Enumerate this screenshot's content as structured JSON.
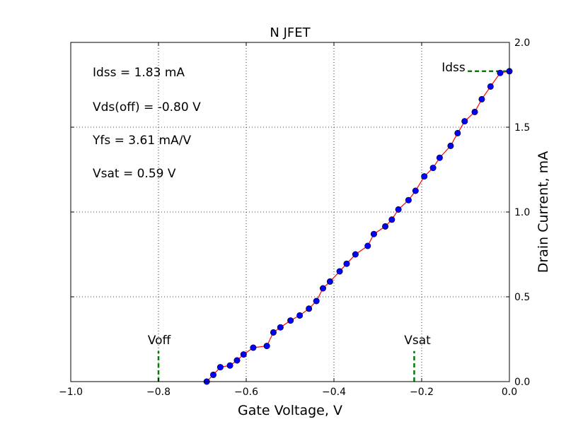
{
  "chart_data": {
    "type": "line",
    "title": "N JFET",
    "xlabel": "Gate Voltage, V",
    "ylabel": "Drain Current, mA",
    "xlim": [
      -1.0,
      0.0
    ],
    "ylim": [
      0.0,
      2.0
    ],
    "grid": true,
    "x_ticks": [
      -1.0,
      -0.8,
      -0.6,
      -0.4,
      -0.2,
      0.0
    ],
    "x_tick_labels": [
      "−1.0",
      "−0.8",
      "−0.6",
      "−0.4",
      "−0.2",
      "0.0"
    ],
    "y_ticks": [
      0.0,
      0.5,
      1.0,
      1.5,
      2.0
    ],
    "y_tick_labels": [
      "0.0",
      "0.5",
      "1.0",
      "1.5",
      "2.0"
    ],
    "y_axis_side": "right",
    "series": [
      {
        "line_color": "#ff0000",
        "marker_color": "#0000ff",
        "x": [
          -0.69,
          -0.675,
          -0.659,
          -0.637,
          -0.621,
          -0.606,
          -0.584,
          -0.553,
          -0.538,
          -0.522,
          -0.499,
          -0.478,
          -0.457,
          -0.44,
          -0.425,
          -0.409,
          -0.387,
          -0.371,
          -0.351,
          -0.323,
          -0.309,
          -0.283,
          -0.268,
          -0.253,
          -0.23,
          -0.214,
          -0.194,
          -0.174,
          -0.159,
          -0.134,
          -0.118,
          -0.102,
          -0.079,
          -0.063,
          -0.043,
          -0.021,
          0.0
        ],
        "y": [
          0.0,
          0.04,
          0.085,
          0.095,
          0.125,
          0.16,
          0.2,
          0.21,
          0.29,
          0.32,
          0.36,
          0.39,
          0.43,
          0.475,
          0.55,
          0.59,
          0.65,
          0.695,
          0.75,
          0.8,
          0.87,
          0.915,
          0.955,
          1.015,
          1.07,
          1.125,
          1.21,
          1.26,
          1.32,
          1.39,
          1.465,
          1.535,
          1.59,
          1.665,
          1.74,
          1.82,
          1.83
        ]
      }
    ],
    "annotations": [
      {
        "id": "stat-idss",
        "text": "Idss = 1.83 mA"
      },
      {
        "id": "stat-vds-off",
        "text": "Vds(off) = -0.80 V"
      },
      {
        "id": "stat-yfs",
        "text": "Yfs = 3.61 mA/V"
      },
      {
        "id": "stat-vsat",
        "text": "Vsat = 0.59 V"
      }
    ],
    "markers": [
      {
        "id": "voff",
        "label": "Voff",
        "orientation": "vertical",
        "x": -0.8,
        "y_range": [
          0.0,
          0.18
        ],
        "color": "#008000"
      },
      {
        "id": "vsat",
        "label": "Vsat",
        "orientation": "vertical",
        "x": -0.217,
        "y_range": [
          0.0,
          0.18
        ],
        "color": "#008000"
      },
      {
        "id": "idss",
        "label": "Idss",
        "orientation": "horizontal",
        "y": 1.83,
        "x_range": [
          -0.095,
          0.0
        ],
        "color": "#008000"
      }
    ]
  }
}
